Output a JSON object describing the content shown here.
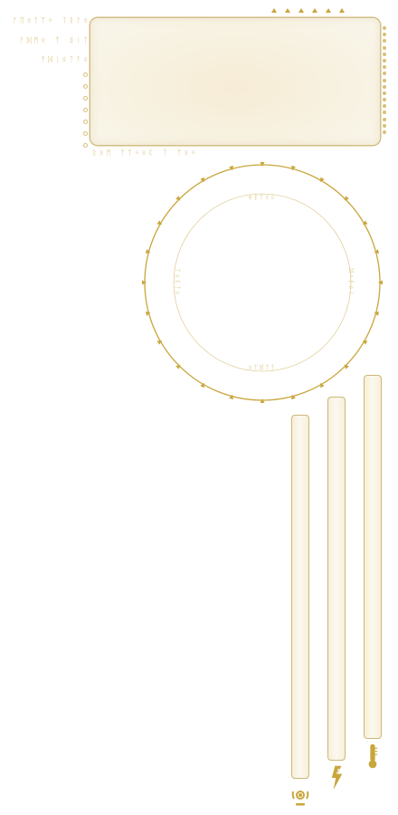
{
  "colors": {
    "accent": "#c9a63c",
    "accent_light": "#d7bf78",
    "panel_fill": "#f7efd9",
    "panel_border": "#cdb778"
  },
  "header_glyphs": [
    "ᚠᛖᛟᚨᛉᛜ ᛏᚱᚨᛟ",
    "ᚨᛞᛗᛟ ᛉ ᛝᛁᛏ",
    "ᚠᛞᛁᛟᛏᚨᛟ"
  ],
  "panel_footer_glyph": "ᚱᛟᛗ ᛉᛉᛜᛟᛕ ᛏ ᛉᛟᛜ",
  "radar": {
    "label_top": "ᛄᛒᛉᛟᛟ",
    "label_bottom": "ᛟᛉᛞᛉᛏ",
    "label_left": "ᛉᛟᛕᛉᛟ",
    "label_right": "ᛞᛜᛕᛟᛁ"
  },
  "gauges": [
    {
      "name": "power",
      "icon": "power-core-icon",
      "level": 0.0
    },
    {
      "name": "energy",
      "icon": "lightning-bolt-icon",
      "level": 0.0
    },
    {
      "name": "temperature",
      "icon": "thermometer-icon",
      "level": 0.0
    }
  ]
}
